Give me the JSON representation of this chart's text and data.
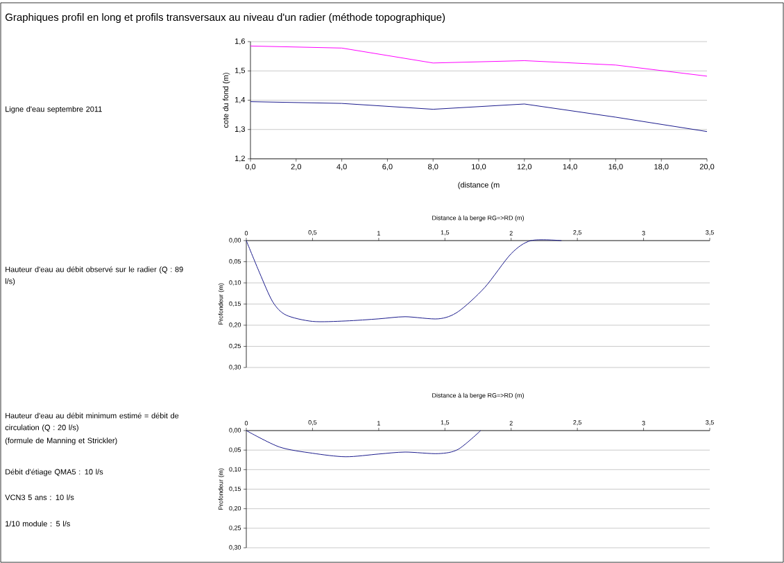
{
  "chart_data": [
    {
      "type": "line",
      "title": "Graphiques profil en long et profils transversaux au niveau d'un radier (méthode topographique)",
      "xlabel": "(distance (m",
      "ylabel": "cote du fond (m)",
      "x": [
        0,
        4,
        8,
        12,
        16,
        20
      ],
      "series": [
        {
          "color": "#ff00ff",
          "values": [
            1.585,
            1.578,
            1.527,
            1.535,
            1.52,
            1.482
          ]
        },
        {
          "color": "#1a1a8c",
          "values": [
            1.395,
            1.389,
            1.369,
            1.387,
            1.342,
            1.293
          ]
        }
      ],
      "xlim": [
        0,
        20
      ],
      "xticks": [
        {
          "value": 0,
          "label": "0,0"
        },
        {
          "value": 2,
          "label": "2,0"
        },
        {
          "value": 4,
          "label": "4,0"
        },
        {
          "value": 6,
          "label": "6,0"
        },
        {
          "value": 8,
          "label": "8,0"
        },
        {
          "value": 10,
          "label": "10,0"
        },
        {
          "value": 12,
          "label": "12,0"
        },
        {
          "value": 14,
          "label": "14,0"
        },
        {
          "value": 16,
          "label": "16,0"
        },
        {
          "value": 18,
          "label": "18,0"
        },
        {
          "value": 20,
          "label": "20,0"
        }
      ],
      "ylim": [
        1.2,
        1.6
      ],
      "yticks": [
        {
          "value": 1.2,
          "label": "1,2"
        },
        {
          "value": 1.3,
          "label": "1,3"
        },
        {
          "value": 1.4,
          "label": "1,4"
        },
        {
          "value": 1.5,
          "label": "1,5"
        },
        {
          "value": 1.6,
          "label": "1,6"
        }
      ],
      "grid": "y",
      "annotations": [
        "Ligne d'eau septembre 2011"
      ]
    },
    {
      "type": "line",
      "xlabel": "Distance à la berge RG=>RD (m)",
      "ylabel": "Profondeur (m)",
      "x": [
        0,
        0.1,
        0.2,
        0.3,
        0.5,
        0.75,
        1.0,
        1.2,
        1.45,
        1.6,
        1.8,
        2.0,
        2.15,
        2.38
      ],
      "series": [
        {
          "color": "#1a1a8c",
          "values": [
            0,
            0.076,
            0.145,
            0.176,
            0.191,
            0.19,
            0.185,
            0.18,
            0.185,
            0.168,
            0.111,
            0.031,
            0,
            0
          ]
        }
      ],
      "xlim": [
        0,
        3.5
      ],
      "xticks": [
        0,
        {
          "value": 0.5,
          "label": "0,5"
        },
        1,
        {
          "value": 1.5,
          "label": "1,5"
        },
        2,
        {
          "value": 2.5,
          "label": "2,5"
        },
        3,
        {
          "value": 3.5,
          "label": "3,5"
        }
      ],
      "ylim": [
        0.3,
        0
      ],
      "yticks": [
        {
          "value": 0,
          "label": "0,00"
        },
        {
          "value": 0.05,
          "label": "0,05"
        },
        {
          "value": 0.1,
          "label": "0,10"
        },
        {
          "value": 0.15,
          "label": "0,15"
        },
        {
          "value": 0.2,
          "label": "0,20"
        },
        {
          "value": 0.25,
          "label": "0,25"
        },
        {
          "value": 0.3,
          "label": "0,30"
        }
      ],
      "grid": "y",
      "annotations": [
        "Hauteur d'eau au débit observé sur le radier (Q : 89 l/s)"
      ]
    },
    {
      "type": "line",
      "xlabel": "Distance à la berge RG=>RD (m)",
      "ylabel": "Profondeur (m)",
      "x": [
        0,
        0.25,
        0.5,
        0.75,
        1.0,
        1.2,
        1.45,
        1.6,
        1.77
      ],
      "series": [
        {
          "color": "#1a1a8c",
          "values": [
            0,
            0.042,
            0.058,
            0.067,
            0.06,
            0.055,
            0.059,
            0.048,
            0
          ]
        }
      ],
      "xlim": [
        0,
        3.5
      ],
      "xticks": [
        0,
        {
          "value": 0.5,
          "label": "0,5"
        },
        1,
        {
          "value": 1.5,
          "label": "1,5"
        },
        2,
        {
          "value": 2.5,
          "label": "2,5"
        },
        3,
        {
          "value": 3.5,
          "label": "3,5"
        }
      ],
      "ylim": [
        0.3,
        0
      ],
      "yticks": [
        {
          "value": 0,
          "label": "0,00"
        },
        {
          "value": 0.05,
          "label": "0,05"
        },
        {
          "value": 0.1,
          "label": "0,10"
        },
        {
          "value": 0.15,
          "label": "0,15"
        },
        {
          "value": 0.2,
          "label": "0,20"
        },
        {
          "value": 0.25,
          "label": "0,25"
        },
        {
          "value": 0.3,
          "label": "0,30"
        }
      ],
      "grid": "y",
      "annotations": [
        "Hauteur d'eau au débit minimum estimé = débit de circulation (Q : 20 l/s)",
        "(formule de Manning et Strickler)",
        "Débit d'étiage QMA5 : 10 l/s",
        "VCN3 5 ans : 10 l/s",
        "1/10 module : 5 l/s"
      ]
    }
  ]
}
